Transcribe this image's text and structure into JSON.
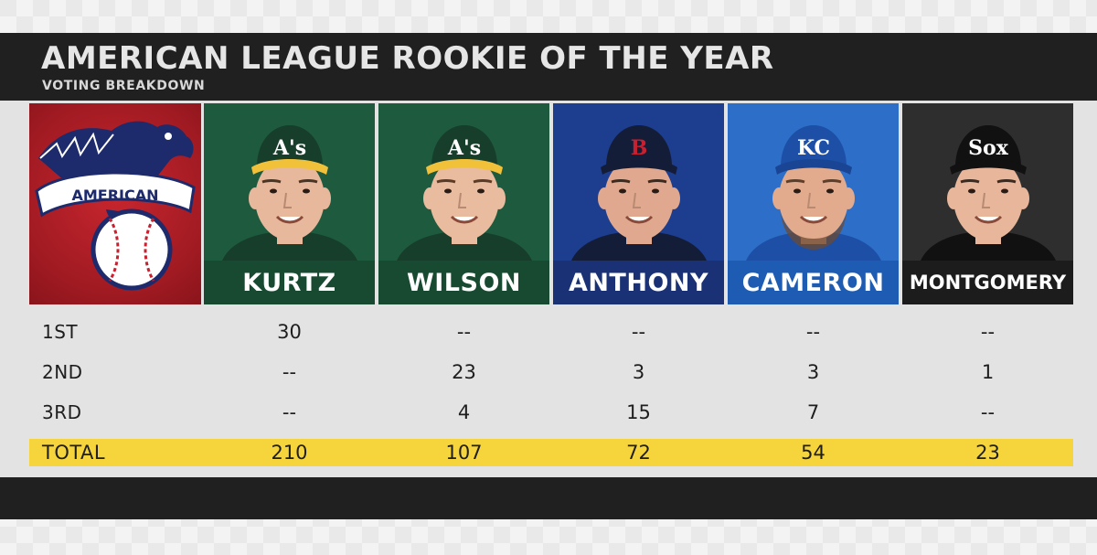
{
  "header": {
    "title": "AMERICAN LEAGUE ROOKIE OF THE YEAR",
    "subtitle": "VOTING BREAKDOWN"
  },
  "logo": {
    "text": "AMERICAN",
    "colors": {
      "red": "#b41f27",
      "navy": "#1d2a6b",
      "white": "#ffffff"
    }
  },
  "players": [
    {
      "name": "KURTZ",
      "team_mark": "A's",
      "bg": "#1e5a3e",
      "bar": "#174a31",
      "cap": "#173d2b",
      "brim": "#f2c13a",
      "logo_color": "#ffffff",
      "skin": "#e8b89c",
      "hair": "#4a3424",
      "beard": false
    },
    {
      "name": "WILSON",
      "team_mark": "A's",
      "bg": "#1e5a3e",
      "bar": "#174a31",
      "cap": "#173d2b",
      "brim": "#f2c13a",
      "logo_color": "#ffffff",
      "skin": "#e9bb9f",
      "hair": "#5a3b26",
      "beard": false
    },
    {
      "name": "ANTHONY",
      "team_mark": "B",
      "bg": "#1d3d8f",
      "bar": "#1a3275",
      "cap": "#141d38",
      "brim": "#141d38",
      "logo_color": "#c8202f",
      "skin": "#e0a98f",
      "hair": "#3c2a1e",
      "beard": false
    },
    {
      "name": "CAMERON",
      "team_mark": "KC",
      "bg": "#2d6fc8",
      "bar": "#1e5bb3",
      "cap": "#1d4fa6",
      "brim": "#1a4594",
      "logo_color": "#ffffff",
      "skin": "#e2ab8e",
      "hair": "#5c3e2a",
      "beard": true
    },
    {
      "name": "MONTGOMERY",
      "team_mark": "Sox",
      "bg": "#2e2e2e",
      "bar": "#1c1c1c",
      "cap": "#111111",
      "brim": "#111111",
      "logo_color": "#ffffff",
      "skin": "#e7b69b",
      "hair": "#3a2a1f",
      "beard": false
    }
  ],
  "rows": [
    {
      "label": "1ST",
      "values": [
        "30",
        "--",
        "--",
        "--",
        "--"
      ]
    },
    {
      "label": "2ND",
      "values": [
        "--",
        "23",
        "3",
        "3",
        "1"
      ]
    },
    {
      "label": "3RD",
      "values": [
        "--",
        "4",
        "15",
        "7",
        "--"
      ]
    },
    {
      "label": "TOTAL",
      "values": [
        "210",
        "107",
        "72",
        "54",
        "23"
      ],
      "highlight": "#f6d43c"
    }
  ]
}
